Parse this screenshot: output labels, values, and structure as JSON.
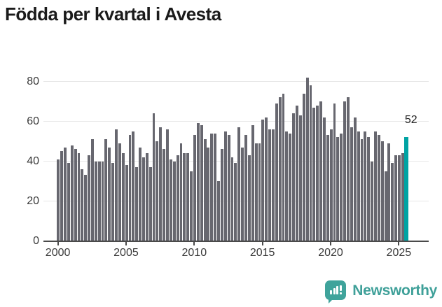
{
  "header": {
    "title": "Födda per kvartal i Avesta"
  },
  "chart_data": {
    "type": "bar",
    "title": "Födda per kvartal i Avesta",
    "frequency": "quarterly",
    "x_start": "2000-Q1",
    "x_end": "2025-Q3",
    "values": [
      41,
      45,
      47,
      39,
      48,
      46,
      44,
      36,
      33,
      43,
      51,
      40,
      40,
      40,
      51,
      47,
      39,
      56,
      49,
      44,
      38,
      53,
      55,
      37,
      47,
      42,
      44,
      37,
      64,
      50,
      57,
      46,
      56,
      41,
      40,
      43,
      49,
      44,
      44,
      35,
      53,
      59,
      58,
      51,
      47,
      54,
      54,
      30,
      46,
      55,
      53,
      42,
      39,
      57,
      47,
      53,
      43,
      58,
      49,
      49,
      61,
      62,
      56,
      56,
      69,
      72,
      74,
      55,
      54,
      64,
      68,
      63,
      74,
      82,
      78,
      67,
      68,
      70,
      62,
      53,
      56,
      69,
      52,
      54,
      70,
      72,
      57,
      62,
      55,
      51,
      55,
      52,
      40,
      55,
      53,
      50,
      35,
      49,
      39,
      43,
      43,
      44,
      52
    ],
    "x_tick_labels": [
      "2000",
      "2005",
      "2010",
      "2015",
      "2020",
      "2025"
    ],
    "y_ticks": [
      0,
      20,
      40,
      60,
      80
    ],
    "ylim": [
      0,
      85
    ],
    "grid": "horizontal",
    "legend": "none",
    "bar_color": "#67676f",
    "highlight_last_bar": true,
    "highlight_color": "#00a3a3",
    "last_value_annotation": "52"
  },
  "branding": {
    "logo_text": "Newsworthy",
    "logo_icon": "newsworthy-speech-bubble-chart-icon",
    "color": "#3fa099"
  }
}
